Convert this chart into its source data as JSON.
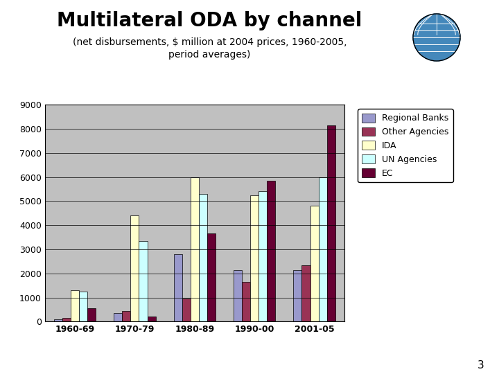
{
  "title": "Multilateral ODA by channel",
  "subtitle": "(net disbursements, $ million at 2004 prices, 1960-2005,\nperiod averages)",
  "categories": [
    "1960-69",
    "1970-79",
    "1980-89",
    "1990-00",
    "2001-05"
  ],
  "series": {
    "Regional Banks": [
      100,
      350,
      2800,
      2150,
      2150
    ],
    "Other Agencies": [
      150,
      450,
      950,
      1650,
      2350
    ],
    "IDA": [
      1300,
      4400,
      6000,
      5250,
      4800
    ],
    "UN Agencies": [
      1250,
      3350,
      5300,
      5400,
      6000
    ],
    "EC": [
      550,
      200,
      3650,
      5850,
      8150
    ]
  },
  "colors": {
    "Regional Banks": "#9999CC",
    "Other Agencies": "#993355",
    "IDA": "#FFFFCC",
    "UN Agencies": "#CCFFFF",
    "EC": "#660033"
  },
  "ylim": [
    0,
    9000
  ],
  "yticks": [
    0,
    1000,
    2000,
    3000,
    4000,
    5000,
    6000,
    7000,
    8000,
    9000
  ],
  "plot_bg_color": "#C0C0C0",
  "page_bg_color": "#FFFFFF",
  "bar_width": 0.14,
  "legend_fontsize": 9,
  "title_fontsize": 20,
  "subtitle_fontsize": 10,
  "axis_fontsize": 9,
  "page_number": "3"
}
